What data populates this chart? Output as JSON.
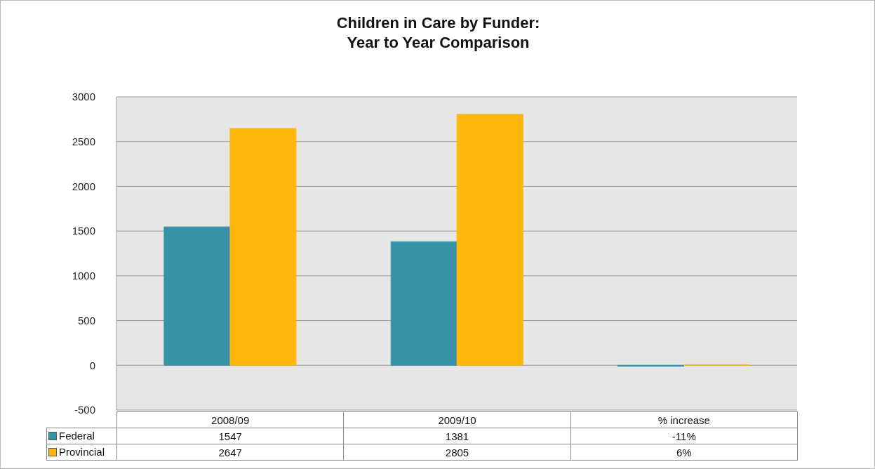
{
  "chart_data": {
    "type": "bar",
    "title": "Children in Care by Funder:\nYear to Year Comparison",
    "categories": [
      "2008/09",
      "2009/10",
      "% increase"
    ],
    "series": [
      {
        "name": "Federal",
        "color": "#3792a8",
        "values": [
          1547,
          1381,
          -11
        ],
        "value_labels": [
          "1547",
          "1381",
          "-11%"
        ]
      },
      {
        "name": "Provincial",
        "color": "#feb70d",
        "values": [
          2647,
          2805,
          6
        ],
        "value_labels": [
          "2647",
          "2805",
          "6%"
        ]
      }
    ],
    "ylim": [
      -500,
      3000
    ],
    "yticks": [
      -500,
      0,
      500,
      1000,
      1500,
      2000,
      2500,
      3000
    ],
    "grid": "y",
    "legend": "bottom"
  }
}
